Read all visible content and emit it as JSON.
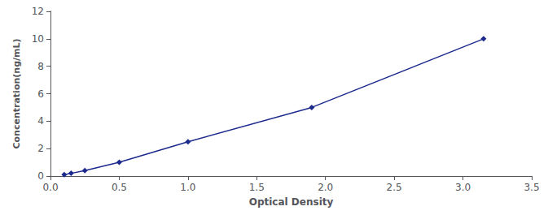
{
  "chart_data": {
    "type": "line",
    "xlabel": "Optical Density",
    "ylabel": "Concentration(ng/mL)",
    "x": [
      0.1,
      0.15,
      0.25,
      0.5,
      1.0,
      1.9,
      3.15
    ],
    "values": [
      0.1,
      0.2,
      0.4,
      1.0,
      2.5,
      5.0,
      10.0
    ],
    "color": "#1B2A8C",
    "marker": "diamond",
    "xlim": [
      0,
      3.5
    ],
    "ylim": [
      0,
      12
    ],
    "xticks": [
      {
        "value": 0,
        "label": "0.0"
      },
      0.5,
      {
        "value": 1.0,
        "label": "1.0"
      },
      1.5,
      {
        "value": 2.0,
        "label": "2.0"
      },
      2.5,
      {
        "value": 3.0,
        "label": "3.0"
      },
      3.5
    ],
    "yticks": [
      0,
      2,
      4,
      6,
      8,
      10,
      12
    ],
    "grid": false
  }
}
